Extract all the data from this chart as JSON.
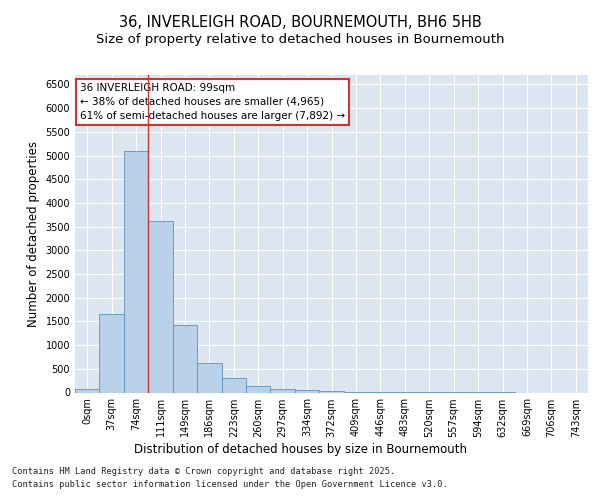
{
  "title_line1": "36, INVERLEIGH ROAD, BOURNEMOUTH, BH6 5HB",
  "title_line2": "Size of property relative to detached houses in Bournemouth",
  "xlabel": "Distribution of detached houses by size in Bournemouth",
  "ylabel": "Number of detached properties",
  "bar_labels": [
    "0sqm",
    "37sqm",
    "74sqm",
    "111sqm",
    "149sqm",
    "186sqm",
    "223sqm",
    "260sqm",
    "297sqm",
    "334sqm",
    "372sqm",
    "409sqm",
    "446sqm",
    "483sqm",
    "520sqm",
    "557sqm",
    "594sqm",
    "632sqm",
    "669sqm",
    "706sqm",
    "743sqm"
  ],
  "bar_values": [
    80,
    1650,
    5100,
    3620,
    1430,
    620,
    300,
    140,
    80,
    55,
    40,
    15,
    10,
    5,
    3,
    2,
    1,
    1,
    0,
    0,
    0
  ],
  "bar_color": "#b8d0e8",
  "bar_edge_color": "#6090b8",
  "vline_x_index": 2.5,
  "vline_color": "#cc3333",
  "annotation_text": "36 INVERLEIGH ROAD: 99sqm\n← 38% of detached houses are smaller (4,965)\n61% of semi-detached houses are larger (7,892) →",
  "annotation_box_color": "#ffffff",
  "annotation_box_edge": "#cc3333",
  "ylim": [
    0,
    6700
  ],
  "yticks": [
    0,
    500,
    1000,
    1500,
    2000,
    2500,
    3000,
    3500,
    4000,
    4500,
    5000,
    5500,
    6000,
    6500
  ],
  "background_color": "#dce6f0",
  "fig_background": "#ffffff",
  "footnote1": "Contains HM Land Registry data © Crown copyright and database right 2025.",
  "footnote2": "Contains public sector information licensed under the Open Government Licence v3.0.",
  "grid_color": "#ffffff",
  "title_fontsize": 10.5,
  "subtitle_fontsize": 9.5,
  "tick_fontsize": 7,
  "label_fontsize": 8.5,
  "ylabel_text": "Number of detached properties"
}
